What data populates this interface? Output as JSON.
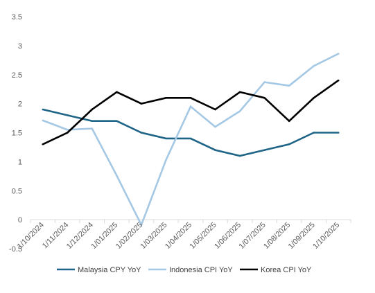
{
  "chart_data": {
    "type": "line",
    "categories": [
      "1/10/2024",
      "1/11/2024",
      "1/12/2024",
      "1/01/2025",
      "1/02/2025",
      "1/03/2025",
      "1/04/2025",
      "1/05/2025",
      "1/06/2025",
      "1/07/2025",
      "1/08/2025",
      "1/09/2025",
      "1/10/2025"
    ],
    "series": [
      {
        "name": "Malaysia CPY YoY",
        "color": "#1f6587",
        "values": [
          1.9,
          1.8,
          1.7,
          1.7,
          1.5,
          1.4,
          1.4,
          1.2,
          1.1,
          1.2,
          1.3,
          1.5,
          1.5
        ]
      },
      {
        "name": "Indonesia CPI YoY",
        "color": "#a5c8e4",
        "values": [
          1.71,
          1.55,
          1.57,
          0.76,
          -0.09,
          1.03,
          1.95,
          1.6,
          1.87,
          2.37,
          2.31,
          2.65,
          2.86
        ]
      },
      {
        "name": "Korea CPI YoY",
        "color": "#000000",
        "values": [
          1.3,
          1.5,
          1.9,
          2.2,
          2.0,
          2.1,
          2.1,
          1.9,
          2.2,
          2.1,
          1.7,
          2.1,
          2.4
        ]
      }
    ],
    "yticks": [
      "-0.5",
      "0",
      "0.5",
      "1",
      "1.5",
      "2",
      "2.5",
      "3",
      "3.5"
    ],
    "ylim": [
      -0.5,
      3.5
    ],
    "grid": false,
    "legend_position": "bottom",
    "title": "",
    "xlabel": "",
    "ylabel": ""
  }
}
